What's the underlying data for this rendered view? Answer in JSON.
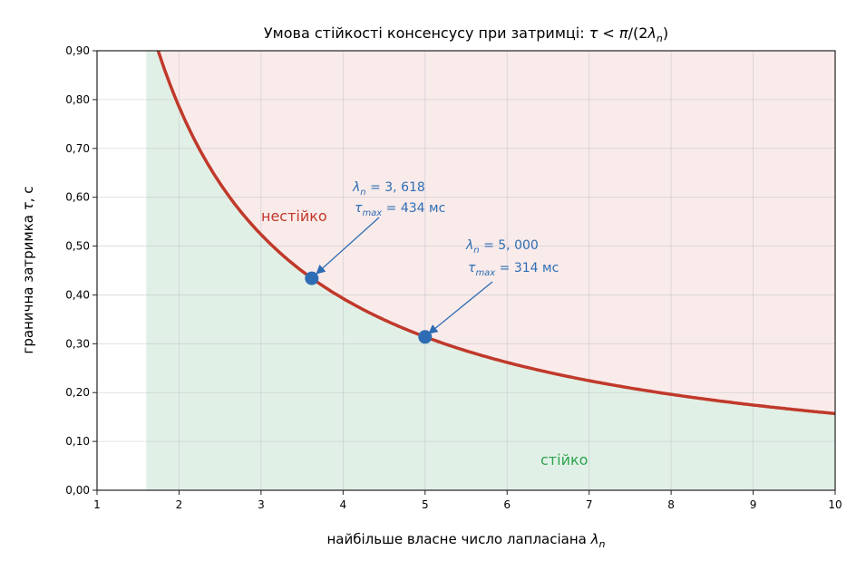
{
  "chart_data": {
    "type": "line",
    "title": "Умова стійкості консенсусу при затримці: τ < π/(2λn)",
    "xlabel": "найбільше власне число лапласіана λn",
    "ylabel": "гранична затримка τ, с",
    "xlim": [
      1,
      10
    ],
    "ylim": [
      0,
      0.9
    ],
    "x_ticks": [
      "1",
      "2",
      "3",
      "4",
      "5",
      "6",
      "7",
      "8",
      "9",
      "10"
    ],
    "x_tick_values": [
      1,
      2,
      3,
      4,
      5,
      6,
      7,
      8,
      9,
      10
    ],
    "y_ticks": [
      "0,00",
      "0,10",
      "0,20",
      "0,30",
      "0,40",
      "0,50",
      "0,60",
      "0,70",
      "0,80",
      "0,90"
    ],
    "y_tick_values": [
      0,
      0.1,
      0.2,
      0.3,
      0.4,
      0.5,
      0.6,
      0.7,
      0.8,
      0.9
    ],
    "grid": true,
    "curve": {
      "formula": "τ = π/(2λn)",
      "color": "#c0392b",
      "x": [
        1.75,
        2,
        2.5,
        3,
        3.618,
        4,
        5,
        6,
        7,
        8,
        9,
        10
      ],
      "y": [
        0.8976,
        0.7854,
        0.6283,
        0.5236,
        0.4342,
        0.3927,
        0.3142,
        0.2618,
        0.2244,
        0.1963,
        0.1745,
        0.1571
      ]
    },
    "regions": {
      "unstable": {
        "label": "нестійко",
        "fill": "#f9ebea",
        "text_color": "#c0392b"
      },
      "stable": {
        "label": "стійко",
        "fill": "#e1f0e6",
        "text_color": "#2ea44f"
      }
    },
    "points": [
      {
        "x": 3.618,
        "y": 0.434,
        "lambda_label": "λn = 3,618",
        "tau_label": "τmax = 434 мс"
      },
      {
        "x": 5.0,
        "y": 0.314,
        "lambda_label": "λn = 5,000",
        "tau_label": "τmax = 314 мс"
      }
    ],
    "point_color": "#2e6db4"
  }
}
